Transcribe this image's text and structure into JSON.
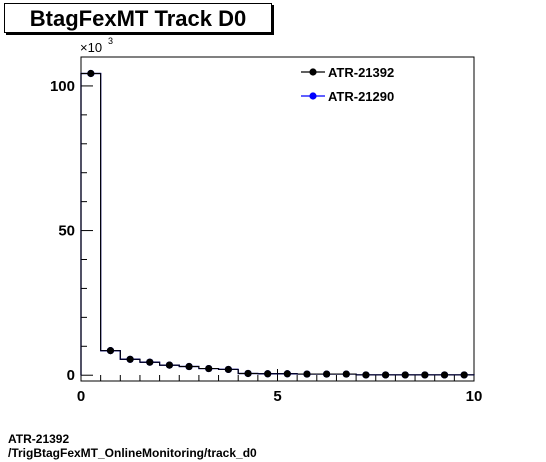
{
  "footer": {
    "line1": "ATR-21392",
    "line2": "/TrigBtagFexMT_OnlineMonitoring/track_d0"
  },
  "colors": {
    "series1": "#000000",
    "series2": "#0000ff"
  },
  "chart_data": {
    "type": "histogram",
    "title": "BtagFexMT Track D0",
    "xlabel": "",
    "ylabel": "",
    "y_multiplier_label": "×10",
    "y_multiplier_exponent": "3",
    "xlim": [
      0,
      10
    ],
    "ylim": [
      -2,
      110
    ],
    "x_ticks": [
      0,
      5,
      10
    ],
    "x_tick_labels": [
      "0",
      "5",
      "10"
    ],
    "y_ticks": [
      0,
      50,
      100
    ],
    "y_tick_labels": [
      "0",
      "50",
      "100"
    ],
    "bin_edges": [
      0,
      0.5,
      1.0,
      1.5,
      2.0,
      2.5,
      3.0,
      3.5,
      4.0,
      4.5,
      5.0,
      5.5,
      6.0,
      6.5,
      7.0,
      7.5,
      8.0,
      8.5,
      9.0,
      9.5,
      10.0
    ],
    "bin_centers": [
      0.25,
      0.75,
      1.25,
      1.75,
      2.25,
      2.75,
      3.25,
      3.75,
      4.25,
      4.75,
      5.25,
      5.75,
      6.25,
      6.75,
      7.25,
      7.75,
      8.25,
      8.75,
      9.25,
      9.75
    ],
    "series": [
      {
        "name": "ATR-21392",
        "values": [
          104.3,
          8.5,
          5.5,
          4.5,
          3.5,
          3.0,
          2.3,
          2.0,
          0.6,
          0.5,
          0.5,
          0.4,
          0.4,
          0.4,
          0.1,
          0.1,
          0.1,
          0.1,
          0.1,
          0.1
        ]
      },
      {
        "name": "ATR-21290",
        "values": [
          104.3,
          8.5,
          5.5,
          4.5,
          3.5,
          3.0,
          2.3,
          2.0,
          0.6,
          0.5,
          0.5,
          0.4,
          0.4,
          0.4,
          0.1,
          0.1,
          0.1,
          0.1,
          0.1,
          0.1
        ]
      }
    ],
    "legend_position": "top-right",
    "grid": false
  }
}
